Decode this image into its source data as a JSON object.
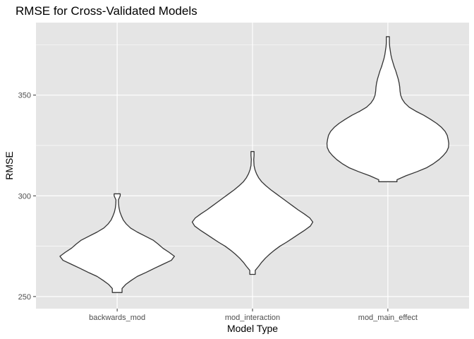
{
  "chart_data": {
    "type": "violin",
    "title": "RMSE for Cross-Validated Models",
    "xlabel": "Model Type",
    "ylabel": "RMSE",
    "categories": [
      "backwards_mod",
      "mod_interaction",
      "mod_main_effect"
    ],
    "ylim": [
      244,
      386
    ],
    "yticks": [
      250,
      300,
      350
    ],
    "grid": true,
    "legend": "none",
    "colors": {
      "panel": "#e5e5e5",
      "grid": "#ffffff",
      "violin_fill": "#ffffff",
      "violin_stroke": "#333333"
    },
    "series": [
      {
        "category": "backwards_mod",
        "ymin": 252,
        "ymax": 301,
        "profile": [
          [
            252,
            0.16
          ],
          [
            254,
            0.16
          ],
          [
            256,
            0.28
          ],
          [
            258,
            0.46
          ],
          [
            260,
            0.66
          ],
          [
            262,
            0.95
          ],
          [
            264,
            1.22
          ],
          [
            266,
            1.5
          ],
          [
            268,
            1.78
          ],
          [
            270,
            1.88
          ],
          [
            272,
            1.7
          ],
          [
            274,
            1.5
          ],
          [
            276,
            1.35
          ],
          [
            278,
            1.18
          ],
          [
            280,
            0.92
          ],
          [
            282,
            0.66
          ],
          [
            284,
            0.44
          ],
          [
            286,
            0.3
          ],
          [
            288,
            0.2
          ],
          [
            290,
            0.14
          ],
          [
            292,
            0.09
          ],
          [
            294,
            0.06
          ],
          [
            296,
            0.045
          ],
          [
            298,
            0.04
          ],
          [
            300,
            0.1
          ],
          [
            301,
            0.1
          ]
        ]
      },
      {
        "category": "mod_interaction",
        "ymin": 261,
        "ymax": 322,
        "profile": [
          [
            261,
            0.09
          ],
          [
            263,
            0.09
          ],
          [
            265,
            0.2
          ],
          [
            267,
            0.3
          ],
          [
            269,
            0.42
          ],
          [
            271,
            0.56
          ],
          [
            273,
            0.72
          ],
          [
            275,
            0.9
          ],
          [
            277,
            1.12
          ],
          [
            279,
            1.32
          ],
          [
            281,
            1.52
          ],
          [
            283,
            1.72
          ],
          [
            285,
            1.9
          ],
          [
            287,
            1.98
          ],
          [
            289,
            1.88
          ],
          [
            291,
            1.7
          ],
          [
            293,
            1.5
          ],
          [
            295,
            1.32
          ],
          [
            297,
            1.14
          ],
          [
            299,
            0.96
          ],
          [
            301,
            0.78
          ],
          [
            303,
            0.6
          ],
          [
            305,
            0.44
          ],
          [
            307,
            0.3
          ],
          [
            309,
            0.2
          ],
          [
            311,
            0.13
          ],
          [
            313,
            0.08
          ],
          [
            315,
            0.05
          ],
          [
            318,
            0.04
          ],
          [
            320,
            0.05
          ],
          [
            322,
            0.05
          ]
        ]
      },
      {
        "category": "mod_main_effect",
        "ymin": 307,
        "ymax": 379,
        "profile": [
          [
            307,
            0.3
          ],
          [
            308,
            0.3
          ],
          [
            310,
            0.6
          ],
          [
            312,
            0.96
          ],
          [
            314,
            1.28
          ],
          [
            316,
            1.5
          ],
          [
            318,
            1.68
          ],
          [
            320,
            1.82
          ],
          [
            322,
            1.93
          ],
          [
            324,
            1.99
          ],
          [
            326,
            2.0
          ],
          [
            328,
            1.98
          ],
          [
            330,
            1.95
          ],
          [
            332,
            1.88
          ],
          [
            334,
            1.76
          ],
          [
            336,
            1.6
          ],
          [
            338,
            1.4
          ],
          [
            340,
            1.18
          ],
          [
            342,
            0.92
          ],
          [
            344,
            0.7
          ],
          [
            346,
            0.56
          ],
          [
            348,
            0.47
          ],
          [
            350,
            0.42
          ],
          [
            352,
            0.4
          ],
          [
            354,
            0.39
          ],
          [
            356,
            0.37
          ],
          [
            358,
            0.34
          ],
          [
            360,
            0.3
          ],
          [
            362,
            0.26
          ],
          [
            364,
            0.21
          ],
          [
            366,
            0.17
          ],
          [
            368,
            0.13
          ],
          [
            370,
            0.1
          ],
          [
            372,
            0.08
          ],
          [
            374,
            0.06
          ],
          [
            376,
            0.05
          ],
          [
            378,
            0.05
          ],
          [
            379,
            0.05
          ]
        ]
      }
    ]
  }
}
